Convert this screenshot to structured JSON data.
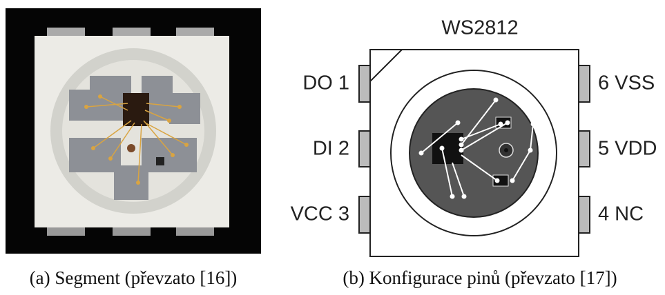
{
  "panel_a": {
    "caption": "(a) Segment (převzato [16])"
  },
  "panel_b": {
    "title": "WS2812",
    "left_pins": [
      "DO 1",
      "DI 2",
      "VCC 3"
    ],
    "right_pins": [
      "6 VSS",
      "5 VDD",
      "4 NC"
    ],
    "caption": "(b) Konfigurace pinů (převzato [17])"
  }
}
